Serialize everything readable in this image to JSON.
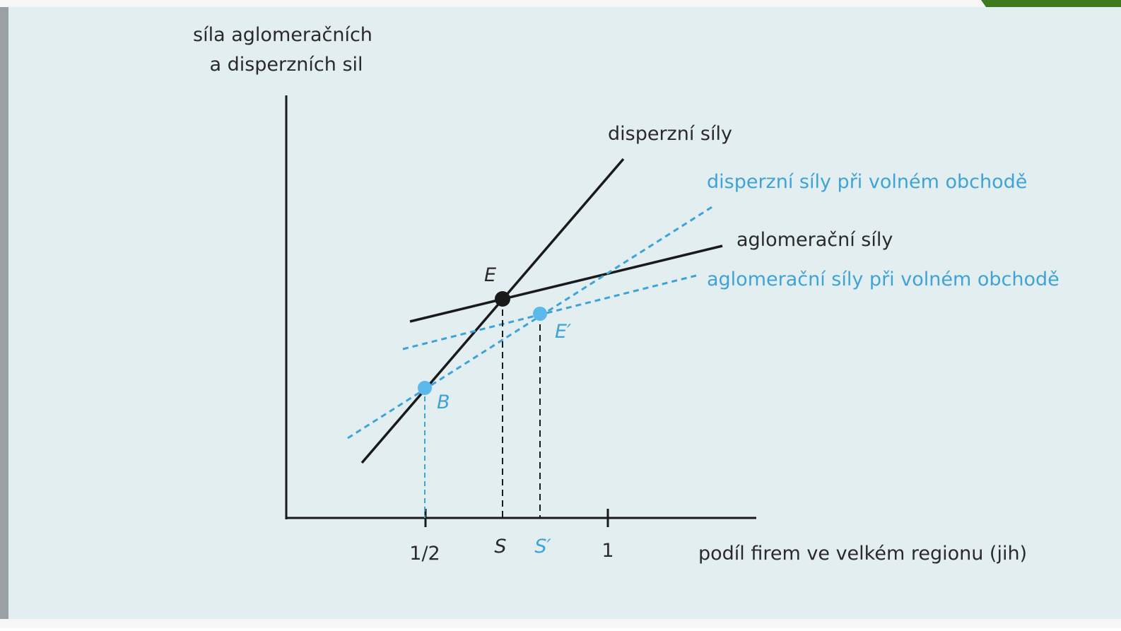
{
  "axes": {
    "y_label": [
      "síla aglomeračních",
      "a disperzních sil"
    ],
    "x_label": "podíl firem ve velkém regionu (jih)",
    "x_ticks": [
      "1/2",
      "S",
      "S′",
      "1"
    ]
  },
  "lines": {
    "dispersion": "disperzní síly",
    "dispersion_free_trade": "disperzní síly při volném obchodě",
    "agglomeration": "aglomerační síly",
    "agglomeration_free_trade": "aglomerační síly při volném obchodě"
  },
  "points": {
    "E": "E",
    "E_prime": "E′",
    "B": "B"
  }
}
